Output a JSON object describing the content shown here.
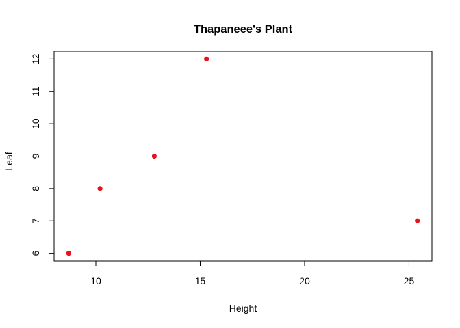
{
  "chart_data": {
    "type": "scatter",
    "title": "Thapaneee's Plant",
    "xlabel": "Height",
    "ylabel": "Leaf",
    "xlim": [
      8.0,
      26.1
    ],
    "ylim": [
      5.76,
      12.24
    ],
    "x_ticks": [
      10,
      15,
      20,
      25
    ],
    "y_ticks": [
      6,
      7,
      8,
      9,
      10,
      11,
      12
    ],
    "points": [
      {
        "x": 8.7,
        "y": 6
      },
      {
        "x": 10.2,
        "y": 8
      },
      {
        "x": 12.8,
        "y": 9
      },
      {
        "x": 15.3,
        "y": 12
      },
      {
        "x": 25.4,
        "y": 7
      }
    ],
    "point_color": "#e8121b",
    "grid": false,
    "legend": "none"
  }
}
